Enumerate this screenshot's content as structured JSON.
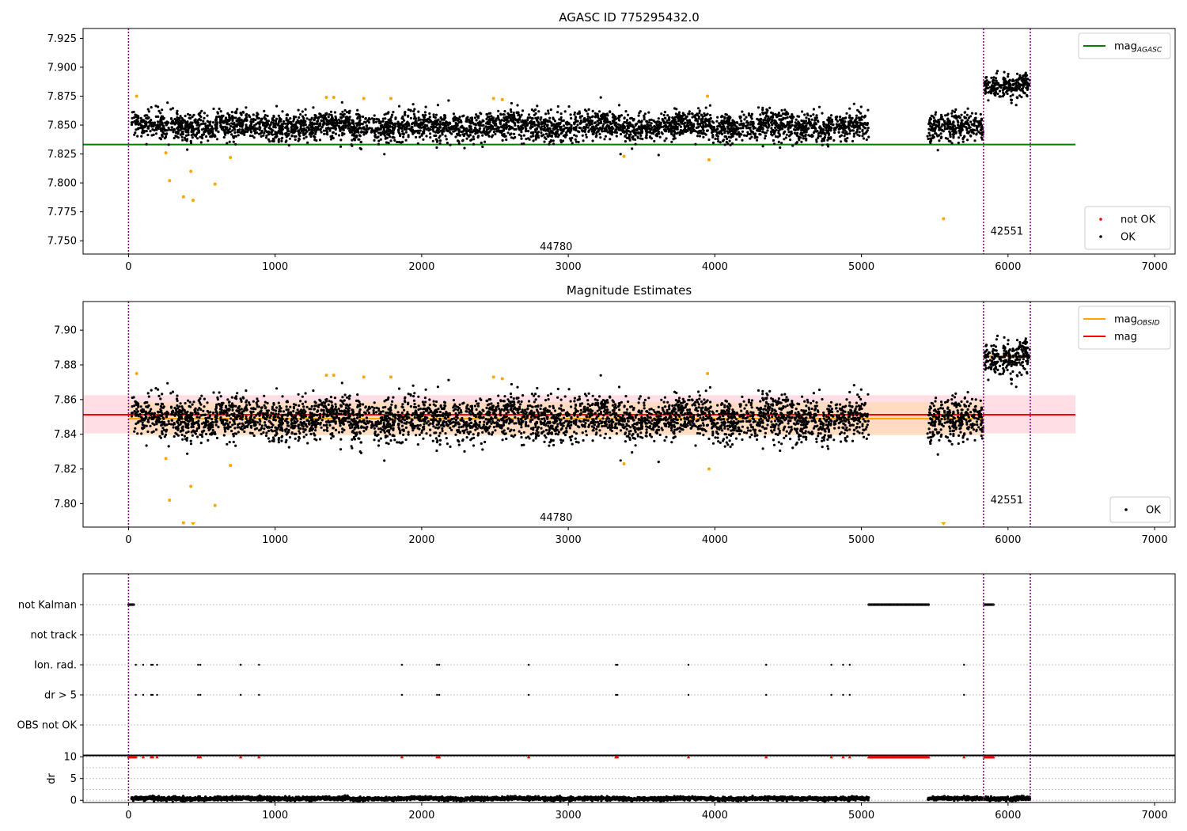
{
  "figure": {
    "background": "#ffffff"
  },
  "colors": {
    "ok": "#000000",
    "not_ok": "#ff0000",
    "suspect": "#ffa500",
    "mag_agasc": "#008000",
    "mag": "#ff0000",
    "mag_obsid": "#ffa500",
    "obsid_line": "#800080",
    "band_mag": "#ffc0cb",
    "band_obsid": "#ffdab9",
    "grid": "#b0b0b0",
    "overflow": "#ff0000"
  },
  "chart_data": [
    {
      "id": "agasc",
      "type": "scatter",
      "title": "AGASC ID 775295432.0",
      "xlabel": "",
      "ylabel": "",
      "xlim": [
        -310,
        7140
      ],
      "ylim": [
        7.7385,
        7.9335
      ],
      "xticks": [
        0,
        1000,
        2000,
        3000,
        4000,
        5000,
        6000,
        7000
      ],
      "yticks": [
        7.75,
        7.775,
        7.8,
        7.825,
        7.85,
        7.875,
        7.9,
        7.925
      ],
      "ytick_labels": [
        "7.750",
        "7.775",
        "7.800",
        "7.825",
        "7.850",
        "7.875",
        "7.900",
        "7.925"
      ],
      "obsid_boundaries": [
        0,
        5833,
        6152
      ],
      "obsid_labels": [
        {
          "text": "44780",
          "x": 2917,
          "y": 7.7445
        },
        {
          "text": "42551",
          "x": 5992,
          "y": 7.758
        }
      ],
      "reference_lines": [
        {
          "name": "mag_AGASC",
          "y": 7.8332,
          "x": [
            -310,
            6460
          ],
          "color": "#008000"
        }
      ],
      "point_series": [
        {
          "name": "OK",
          "color": "#000000",
          "segments": [
            {
              "x": [
                20,
                5050
              ],
              "mean": 7.849,
              "spread": 0.006
            },
            {
              "x": [
                5450,
                5830
              ],
              "mean": 7.847,
              "spread": 0.006
            },
            {
              "x": [
                5840,
                6150
              ],
              "mean": 7.885,
              "spread": 0.005
            }
          ]
        }
      ],
      "suspect_points": {
        "color": "#ffa500",
        "x": [
          55,
          255,
          280,
          375,
          425,
          440,
          590,
          695,
          1350,
          1400,
          1605,
          1790,
          2490,
          2550,
          3380,
          3950,
          3960,
          5560
        ],
        "y": [
          7.875,
          7.826,
          7.802,
          7.788,
          7.81,
          7.785,
          7.799,
          7.822,
          7.874,
          7.874,
          7.873,
          7.873,
          7.873,
          7.872,
          7.823,
          7.875,
          7.82,
          7.769
        ]
      },
      "legends": [
        {
          "position": "upper-right",
          "entries": [
            {
              "label": "mag",
              "sub": "AGASC",
              "kind": "line",
              "color": "#008000"
            }
          ]
        },
        {
          "position": "lower-right",
          "entries": [
            {
              "label": "not OK",
              "kind": "dot",
              "color": "#ff0000"
            },
            {
              "label": "OK",
              "kind": "dot",
              "color": "#000000"
            }
          ]
        }
      ]
    },
    {
      "id": "estimates",
      "type": "scatter",
      "title": "Magnitude Estimates",
      "xlabel": "",
      "ylabel": "",
      "xlim": [
        -310,
        7140
      ],
      "ylim": [
        7.7865,
        7.9165
      ],
      "xticks": [
        0,
        1000,
        2000,
        3000,
        4000,
        5000,
        6000,
        7000
      ],
      "yticks": [
        7.8,
        7.82,
        7.84,
        7.86,
        7.88,
        7.9
      ],
      "ytick_labels": [
        "7.80",
        "7.82",
        "7.84",
        "7.86",
        "7.88",
        "7.90"
      ],
      "obsid_boundaries": [
        0,
        5833,
        6152
      ],
      "obsid_labels": [
        {
          "text": "44780",
          "x": 2917,
          "y": 7.792
        },
        {
          "text": "42551",
          "x": 5992,
          "y": 7.802
        }
      ],
      "bands": [
        {
          "name": "mag range",
          "y": [
            7.8405,
            7.8625
          ],
          "x": [
            -310,
            6460
          ],
          "color": "#ffc0cb",
          "opacity": 0.5
        },
        {
          "name": "obsid range",
          "y": [
            7.8395,
            7.8585
          ],
          "x": [
            0,
            5833
          ],
          "color": "#ffdab9",
          "opacity": 0.8
        },
        {
          "name": "obsid range",
          "y": [
            7.8835,
            7.886
          ],
          "x": [
            5833,
            6152
          ],
          "color": "#ffdab9",
          "opacity": 0.8
        }
      ],
      "reference_lines": [
        {
          "name": "mag_OBSID",
          "y": 7.849,
          "x": [
            0,
            5833
          ],
          "color": "#ffa500"
        },
        {
          "name": "mag_OBSID",
          "y": 7.885,
          "x": [
            5833,
            6152
          ],
          "color": "#ffa500"
        },
        {
          "name": "mag",
          "y": 7.8513,
          "x": [
            -310,
            6460
          ],
          "color": "#ff0000"
        }
      ],
      "point_series": [
        {
          "name": "OK",
          "color": "#000000",
          "segments": [
            {
              "x": [
                20,
                5050
              ],
              "mean": 7.849,
              "spread": 0.006
            },
            {
              "x": [
                5450,
                5830
              ],
              "mean": 7.847,
              "spread": 0.006
            },
            {
              "x": [
                5840,
                6150
              ],
              "mean": 7.885,
              "spread": 0.005
            }
          ]
        }
      ],
      "suspect_points": {
        "color": "#ffa500",
        "x": [
          55,
          255,
          280,
          375,
          425,
          590,
          695,
          1350,
          1400,
          1605,
          1790,
          2490,
          2550,
          3380,
          3950,
          3960
        ],
        "y": [
          7.875,
          7.826,
          7.802,
          7.789,
          7.81,
          7.799,
          7.822,
          7.874,
          7.874,
          7.873,
          7.873,
          7.873,
          7.872,
          7.823,
          7.875,
          7.82
        ]
      },
      "overflow_markers": {
        "x": [
          440,
          5560
        ],
        "color": "#ffa500"
      },
      "legends": [
        {
          "position": "upper-right",
          "entries": [
            {
              "label": "mag",
              "sub": "OBSID",
              "kind": "line",
              "color": "#ffa500"
            },
            {
              "label": "mag",
              "kind": "line",
              "color": "#ff0000"
            }
          ]
        },
        {
          "position": "lower-right",
          "entries": [
            {
              "label": "OK",
              "kind": "dot",
              "color": "#000000"
            }
          ]
        }
      ]
    },
    {
      "id": "flags",
      "type": "scatter",
      "title": "",
      "xlabel": "",
      "ylabel": "",
      "xlim": [
        -310,
        7140
      ],
      "categories": [
        "not Kalman",
        "not track",
        "Ion. rad.",
        "dr > 5",
        "OBS not OK"
      ],
      "obsid_boundaries": [
        0,
        5833,
        6152
      ],
      "flag_points": {
        "not Kalman": [
          [
            0,
            40
          ],
          [
            5050,
            5460
          ],
          [
            5840,
            5900
          ]
        ],
        "not track": [],
        "Ion. rad.": [
          50,
          100,
          155,
          165,
          195,
          475,
          490,
          765,
          890,
          1865,
          2105,
          2120,
          2730,
          3325,
          3335,
          3820,
          4350,
          4795,
          4875,
          4920,
          5700
        ],
        "dr > 5": [
          50,
          100,
          155,
          165,
          195,
          475,
          490,
          765,
          890,
          1865,
          2105,
          2120,
          2730,
          3325,
          3335,
          3820,
          4350,
          4795,
          4875,
          4920,
          5700
        ],
        "OBS not OK": []
      }
    },
    {
      "id": "dr",
      "type": "scatter",
      "title": "",
      "xlabel": "",
      "ylabel": "dr",
      "xlim": [
        -310,
        7140
      ],
      "ylim": [
        -0.5,
        10.4
      ],
      "xticks": [
        0,
        1000,
        2000,
        3000,
        4000,
        5000,
        6000,
        7000
      ],
      "yticks": [
        0,
        5,
        10
      ],
      "obsid_boundaries": [
        0,
        5833,
        6152
      ],
      "point_series": [
        {
          "name": "dr",
          "color": "#000000",
          "segments": [
            {
              "x": [
                20,
                5050
              ],
              "mean": 0.4,
              "spread": 0.2
            },
            {
              "x": [
                5450,
                5830
              ],
              "mean": 0.4,
              "spread": 0.2
            },
            {
              "x": [
                5840,
                6150
              ],
              "mean": 0.4,
              "spread": 0.2
            }
          ]
        }
      ],
      "clipped_points": {
        "color": "#ff0000",
        "y": 10,
        "x": [
          0,
          10,
          20,
          30,
          40,
          50,
          100,
          155,
          165,
          195,
          475,
          490,
          765,
          890,
          1865,
          2105,
          2120,
          2730,
          3325,
          3335,
          3820,
          4350,
          4795,
          4875,
          4920,
          5700
        ],
        "ranges": [
          [
            5050,
            5460
          ],
          [
            5840,
            5900
          ]
        ]
      }
    }
  ]
}
